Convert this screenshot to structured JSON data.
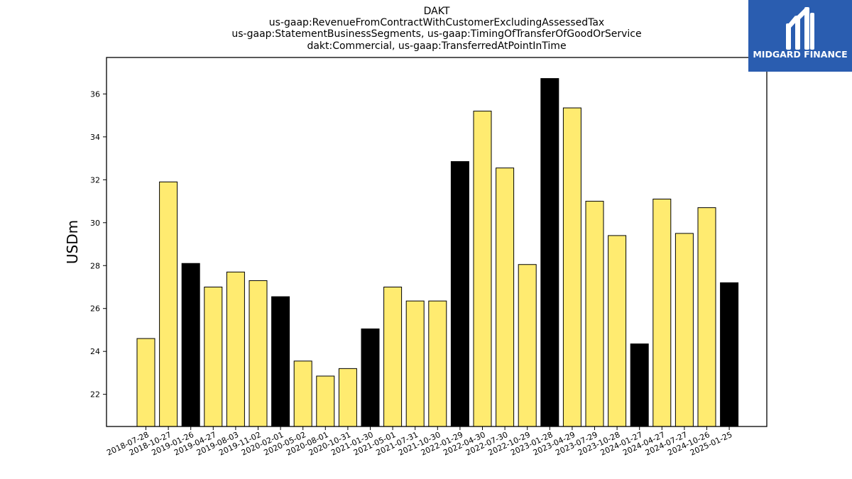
{
  "logo": {
    "text": "MIDGARD FINANCE",
    "bg_color": "#2a5db0",
    "icon": "midgard-m-icon"
  },
  "chart_data": {
    "type": "bar",
    "title_lines": [
      "DAKT",
      "us-gaap:RevenueFromContractWithCustomerExcludingAssessedTax",
      "us-gaap:StatementBusinessSegments, us-gaap:TimingOfTransferOfGoodOrService",
      "dakt:Commercial, us-gaap:TransferredAtPointInTime"
    ],
    "xlabel": "",
    "ylabel": "USDm",
    "ylim": [
      20.5,
      37.7
    ],
    "yticks": [
      22,
      24,
      26,
      28,
      30,
      32,
      34,
      36
    ],
    "grid": false,
    "colors": {
      "regular": "#ffeb70",
      "highlight": "#000000",
      "edge": "#000000"
    },
    "categories": [
      "2018-07-28",
      "2018-10-27",
      "2019-01-26",
      "2019-04-27",
      "2019-08-03",
      "2019-11-02",
      "2020-02-01",
      "2020-05-02",
      "2020-08-01",
      "2020-10-31",
      "2021-01-30",
      "2021-05-01",
      "2021-07-31",
      "2021-10-30",
      "2022-01-29",
      "2022-04-30",
      "2022-07-30",
      "2022-10-29",
      "2023-01-28",
      "2023-04-29",
      "2023-07-29",
      "2023-10-28",
      "2024-01-27",
      "2024-04-27",
      "2024-07-27",
      "2024-10-26",
      "2025-01-25"
    ],
    "values": [
      24.6,
      31.9,
      28.1,
      27.0,
      27.7,
      27.3,
      26.55,
      23.55,
      22.85,
      23.2,
      25.05,
      27.0,
      26.35,
      26.35,
      32.85,
      35.2,
      32.55,
      28.05,
      36.72,
      35.35,
      31.0,
      29.4,
      24.35,
      31.1,
      29.5,
      30.7,
      27.2
    ],
    "highlight": [
      false,
      false,
      true,
      false,
      false,
      false,
      true,
      false,
      false,
      false,
      true,
      false,
      false,
      false,
      true,
      false,
      false,
      false,
      true,
      false,
      false,
      false,
      true,
      false,
      false,
      false,
      true
    ]
  }
}
